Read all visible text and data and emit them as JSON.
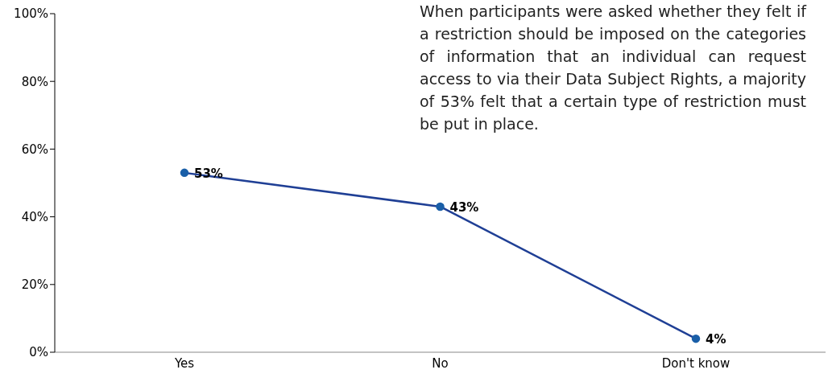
{
  "chart_data": {
    "type": "line",
    "categories": [
      "Yes",
      "No",
      "Don't know"
    ],
    "series": [
      {
        "color": "#1f3f95",
        "values": [
          53,
          43,
          4
        ],
        "value_labels": [
          "53%",
          "43%",
          "4%"
        ]
      }
    ],
    "ylim": [
      0,
      100
    ],
    "yticks": [
      {
        "value": 0,
        "label": "0%"
      },
      {
        "value": 20,
        "label": "20%"
      },
      {
        "value": 40,
        "label": "40%"
      },
      {
        "value": 60,
        "label": "60%"
      },
      {
        "value": 80,
        "label": "80%"
      },
      {
        "value": 100,
        "label": "100%"
      }
    ],
    "grid": false,
    "legend": false,
    "marker": "circle",
    "line_style": "solid",
    "annotations": [
      "When participants were asked whether they felt if a restriction should be imposed on the categories of information that an individual can request access to via their Data Subject Rights, a majority of 53% felt that a certain type of restriction must be put in place."
    ]
  }
}
